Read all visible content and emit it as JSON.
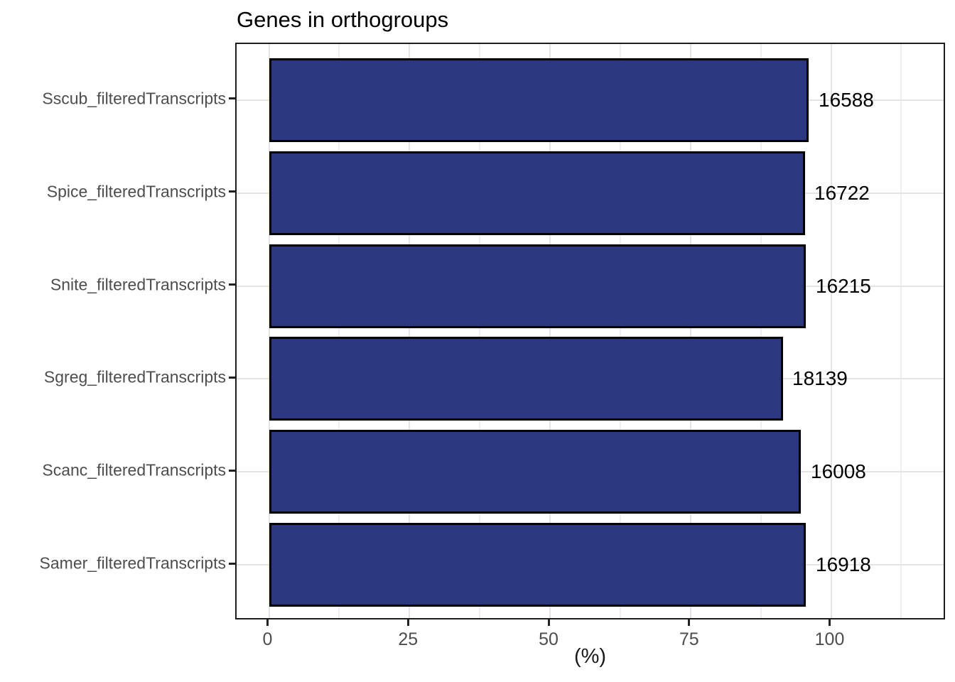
{
  "chart_data": {
    "type": "bar",
    "orientation": "horizontal",
    "title": "Genes in orthogroups",
    "xlabel": "(%)",
    "ylabel": "",
    "grid": true,
    "legend": false,
    "categories": [
      "Sscub_filteredTranscripts",
      "Spice_filteredTranscripts",
      "Snite_filteredTranscripts",
      "Sgreg_filteredTranscripts",
      "Scanc_filteredTranscripts",
      "Samer_filteredTranscripts"
    ],
    "values_percent": [
      96.0,
      95.3,
      95.5,
      91.4,
      94.6,
      95.5
    ],
    "bar_labels": [
      "16588",
      "16722",
      "16215",
      "18139",
      "16008",
      "16918"
    ],
    "x_ticks": [
      0,
      25,
      50,
      75,
      100
    ],
    "x_minor_gridlines": [
      12.5,
      37.5,
      62.5,
      87.5,
      112.5
    ],
    "xlim": [
      -5.7,
      120.5
    ],
    "colors": {
      "bar_fill": "#2B377E",
      "bar_stroke": "#000000",
      "grid_major": "#e4e4e4",
      "grid_minor": "#efefef",
      "axis_text": "#4d4d4d",
      "panel_border": "#1d1d1d",
      "title_text": "#000000"
    }
  }
}
